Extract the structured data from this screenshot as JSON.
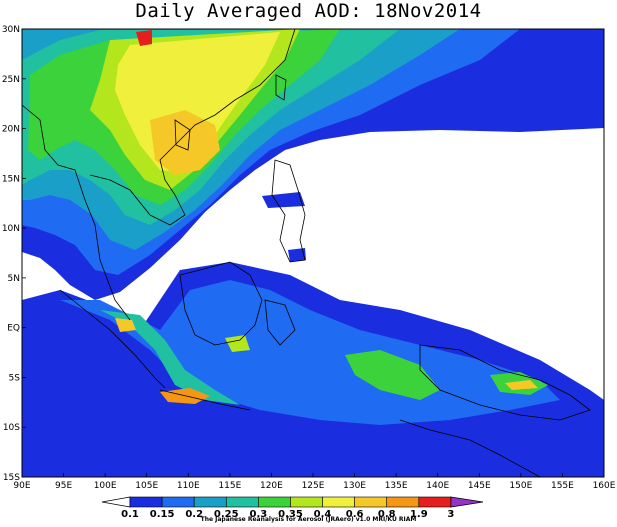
{
  "title": "Daily Averaged AOD: 18Nov2014",
  "credit": "The Japanese Reanalysis for Aerosol (JRAero) v1.0 MRI/KU RIAM",
  "lat_labels": [
    "30N",
    "25N",
    "20N",
    "15N",
    "10N",
    "5N",
    "EQ",
    "5S",
    "10S",
    "15S"
  ],
  "lon_labels": [
    "90E",
    "95E",
    "100E",
    "105E",
    "110E",
    "115E",
    "120E",
    "125E",
    "130E",
    "135E",
    "140E",
    "145E",
    "150E",
    "155E",
    "160E"
  ],
  "colorbar": {
    "labels": [
      "0.1",
      "0.15",
      "0.2",
      "0.25",
      "0.3",
      "0.35",
      "0.4",
      "0.6",
      "0.8",
      "1.9",
      "3"
    ],
    "colors": [
      "#1a2ee0",
      "#1f6bf2",
      "#1aa0c8",
      "#20c0a0",
      "#3cd23c",
      "#b4e61e",
      "#f0f03c",
      "#f5c828",
      "#f59614",
      "#e61e1e",
      "#9632c8"
    ]
  },
  "map": {
    "region": "90E-160E, 15S-30N",
    "variable": "Aerosol Optical Depth"
  }
}
